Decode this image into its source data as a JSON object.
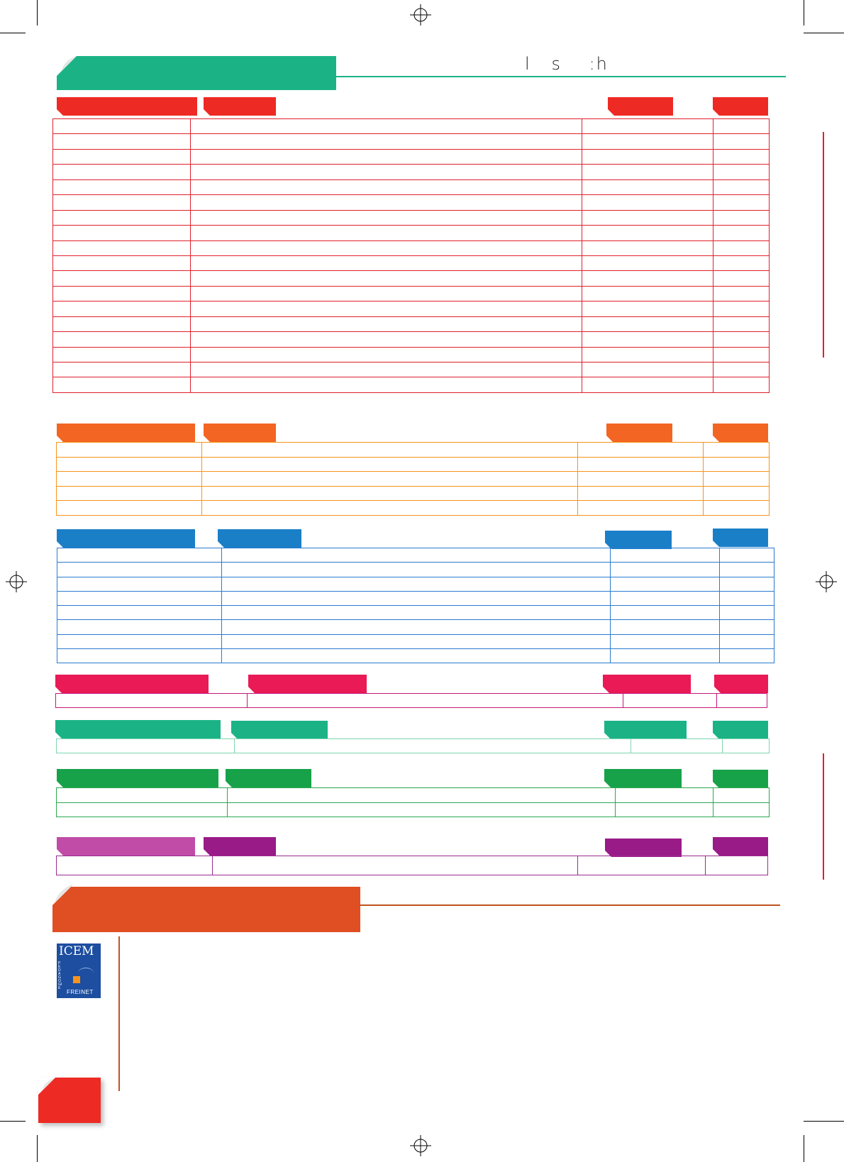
{
  "header": {
    "running_title": "l   s    :h",
    "accent_color": "#1bb385",
    "rule_color": "#1bb385"
  },
  "footer_section": {
    "banner_color": "#e04e23",
    "rule_color": "#c0531f",
    "logo": {
      "line1": "ICEM",
      "vertical_text": "PEDAGOGIE",
      "bottom_text": "FREINET",
      "color": "#1d4ea0"
    },
    "page_corner_color": "#ee2a24"
  },
  "sections": [
    {
      "id": "red",
      "color": "#ee2a24",
      "line_color": "#e0202a",
      "rows": 18
    },
    {
      "id": "orange",
      "color": "#f36523",
      "line_color": "#f7941d",
      "rows": 5
    },
    {
      "id": "blue",
      "color": "#1b7fc8",
      "line_color": "#2a7bd0",
      "rows": 8
    },
    {
      "id": "crimson",
      "color": "#e91a56",
      "line_color": "#c2187a",
      "rows": 1
    },
    {
      "id": "teal",
      "color": "#1bb385",
      "line_color": "#7fd6b1",
      "rows": 1
    },
    {
      "id": "green",
      "color": "#17a24a",
      "line_color": "#2aa84f",
      "rows": 2
    },
    {
      "id": "purple",
      "color": "#991b87",
      "line_color": "#9b2a8f",
      "rows": 1
    }
  ],
  "side_rules_color": "#e0202a",
  "icons": [
    "registration-mark-icon",
    "page-curl-icon"
  ]
}
